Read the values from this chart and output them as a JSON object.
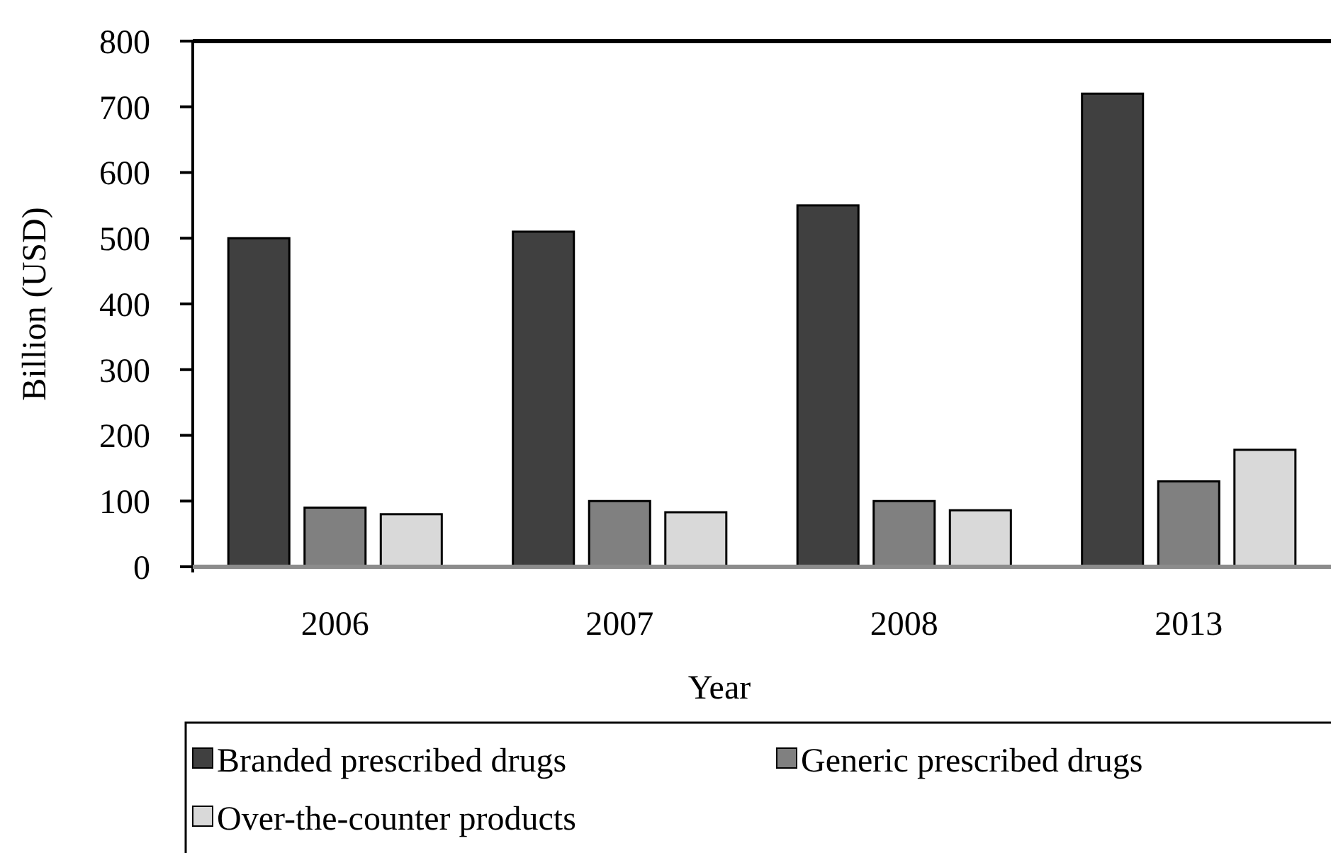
{
  "chart_data": {
    "type": "bar",
    "xlabel": "Year",
    "ylabel": "Billion (USD)",
    "categories": [
      "2006",
      "2007",
      "2008",
      "2013"
    ],
    "series": [
      {
        "name": "Branded prescribed drugs",
        "color": "#404040",
        "values": [
          500,
          510,
          550,
          720
        ]
      },
      {
        "name": "Generic prescribed drugs",
        "color": "#808080",
        "values": [
          90,
          100,
          100,
          130
        ]
      },
      {
        "name": "Over-the-counter products",
        "color": "#d9d9d9",
        "values": [
          80,
          83,
          86,
          178
        ]
      }
    ],
    "ylim": [
      0,
      800
    ],
    "yticks": [
      0,
      100,
      200,
      300,
      400,
      500,
      600,
      700,
      800
    ],
    "grid": false,
    "legend": "bottom"
  }
}
